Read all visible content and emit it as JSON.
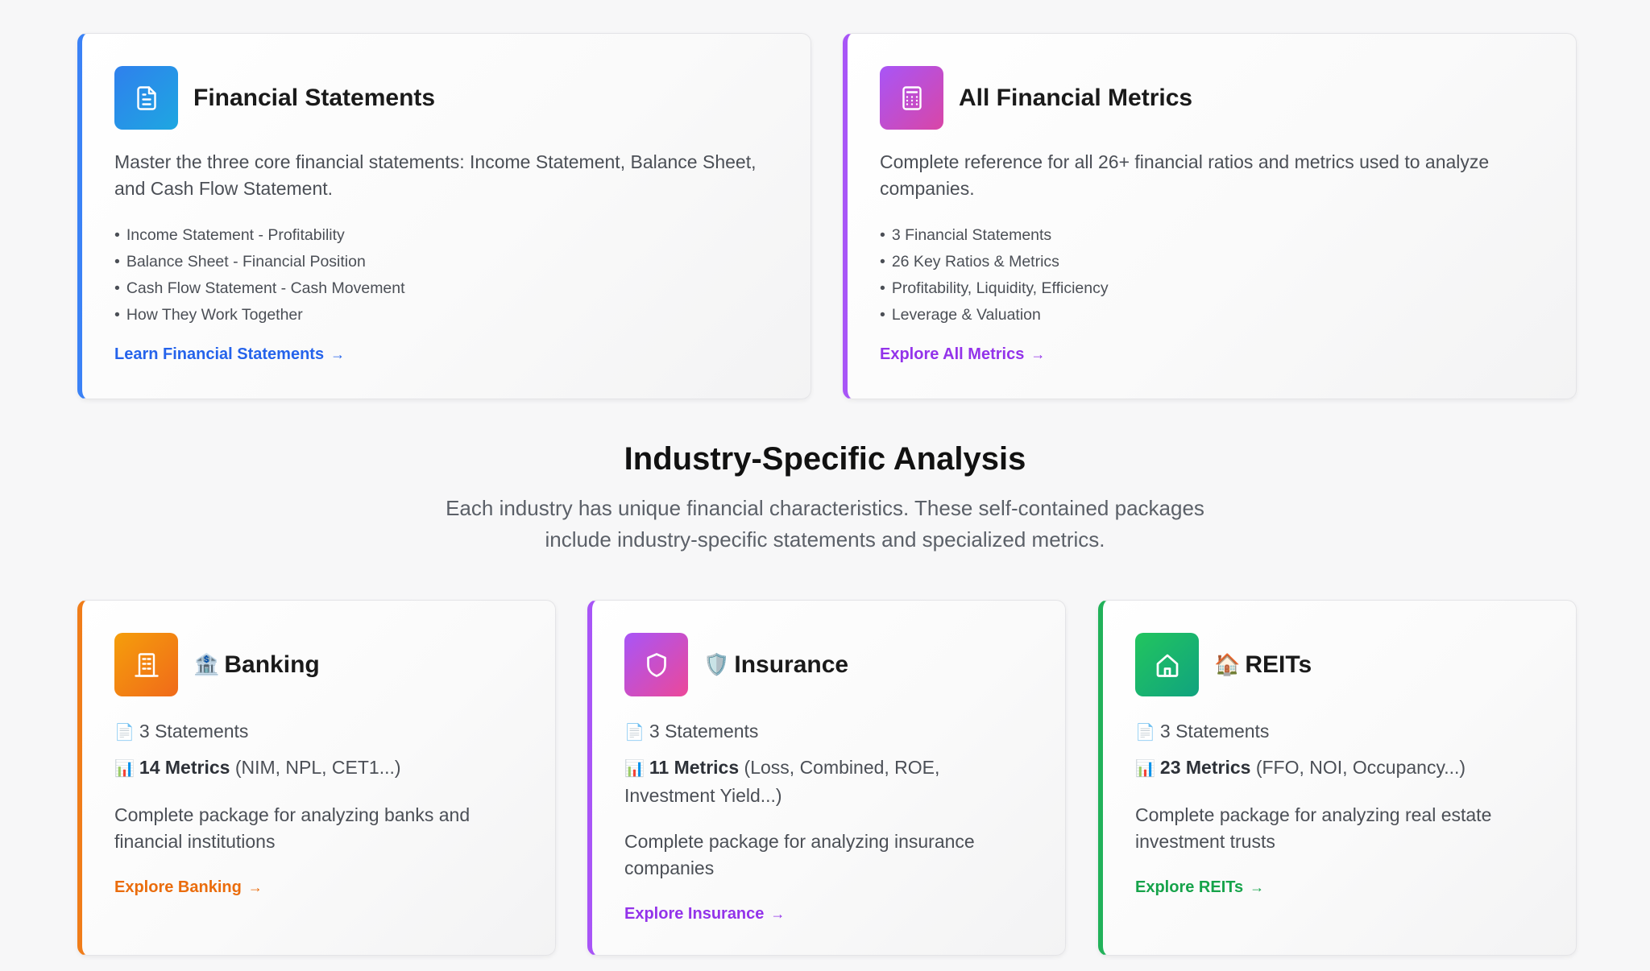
{
  "financial_statements": {
    "title": "Financial Statements",
    "icon": "document-icon",
    "accent": "#3b82f6",
    "description": "Master the three core financial statements: Income Statement, Balance Sheet, and Cash Flow Statement.",
    "bullets": [
      "Income Statement - Profitability",
      "Balance Sheet - Financial Position",
      "Cash Flow Statement - Cash Movement",
      "How They Work Together"
    ],
    "link": "Learn Financial Statements"
  },
  "all_metrics": {
    "title": "All Financial Metrics",
    "icon": "calculator-icon",
    "accent": "#a855f7",
    "description": "Complete reference for all 26+ financial ratios and metrics used to analyze companies.",
    "bullets": [
      "3 Financial Statements",
      "26 Key Ratios & Metrics",
      "Profitability, Liquidity, Efficiency",
      "Leverage & Valuation"
    ],
    "link": "Explore All Metrics"
  },
  "industry": {
    "title": "Industry-Specific Analysis",
    "subtitle_line1": "Each industry has unique financial characteristics. These self-contained packages",
    "subtitle_line2": "include industry-specific statements and specialized metrics."
  },
  "banking": {
    "emoji": "🏦",
    "title": "Banking",
    "icon": "bank-building-icon",
    "accent": "#f07d1a",
    "statements": "3 Statements",
    "metrics_count": "14 Metrics",
    "metrics_detail": "(NIM, NPL, CET1...)",
    "description": "Complete package for analyzing banks and financial institutions",
    "link": "Explore Banking"
  },
  "insurance": {
    "emoji": "🛡️",
    "title": "Insurance",
    "icon": "shield-icon",
    "accent": "#a855f7",
    "statements": "3 Statements",
    "metrics_count": "11 Metrics",
    "metrics_detail": "(Loss, Combined, ROE, Investment Yield...)",
    "description": "Complete package for analyzing insurance companies",
    "link": "Explore Insurance"
  },
  "reits": {
    "emoji": "🏠",
    "title": "REITs",
    "icon": "home-icon",
    "accent": "#22b25a",
    "statements": "3 Statements",
    "metrics_count": "23 Metrics",
    "metrics_detail": "(FFO, NOI, Occupancy...)",
    "description": "Complete package for analyzing real estate investment trusts",
    "link": "Explore REITs"
  },
  "icons": {
    "statements_icon": "page-facing-up-icon",
    "metrics_icon": "bar-chart-icon",
    "link_arrow": "arrow-right-icon"
  }
}
